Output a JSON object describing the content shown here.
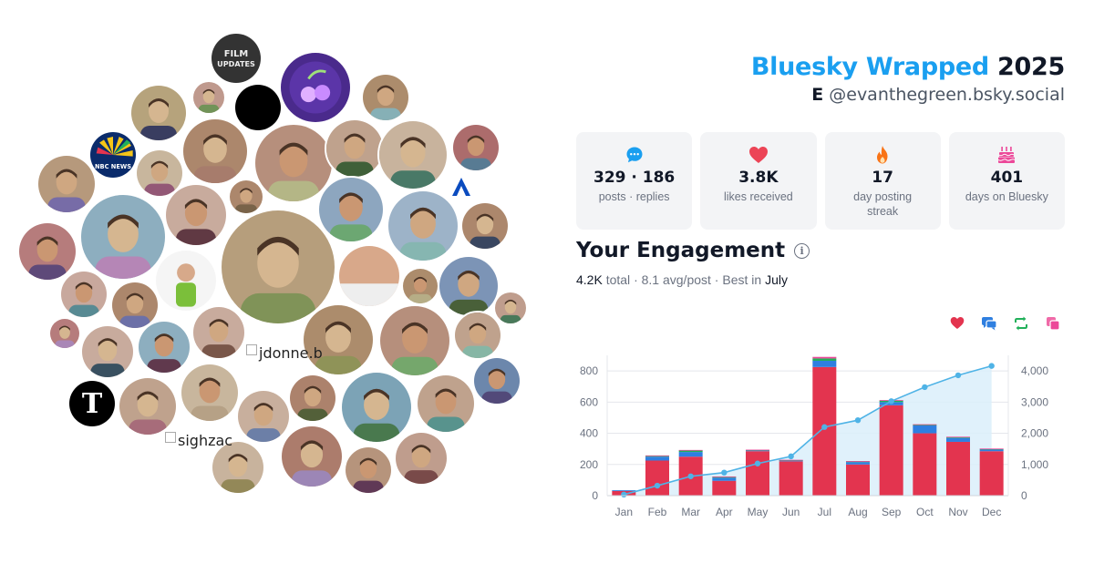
{
  "header": {
    "brand": "Bluesky Wrapped",
    "year": "2025",
    "initial": "E",
    "handle": "@evanthegreen.bsky.social"
  },
  "stats": [
    {
      "icon": "chat-bubble-icon",
      "value": "329 · 186",
      "label": "posts · replies",
      "color": "#1a9ff0"
    },
    {
      "icon": "heart-icon",
      "value": "3.8K",
      "label": "likes received",
      "color": "#ec4456"
    },
    {
      "icon": "flame-icon",
      "value": "17",
      "label": "day posting streak",
      "color": "#f97316"
    },
    {
      "icon": "cake-icon",
      "value": "401",
      "label": "days on Bluesky",
      "color": "#ec4899"
    }
  ],
  "engagement": {
    "title": "Your Engagement",
    "total": "4.2K",
    "total_word": "total",
    "avg": "8.1 avg/post",
    "best_prefix": "Best in",
    "best_month": "July",
    "sep": "·"
  },
  "avatars": {
    "broken_labels": [
      "jdonne.b",
      "sighzac"
    ]
  },
  "legend": [
    {
      "icon": "heart-icon",
      "color": "#e3344f"
    },
    {
      "icon": "reply-icon",
      "color": "#2f7fe0"
    },
    {
      "icon": "repost-icon",
      "color": "#21b05a"
    },
    {
      "icon": "quote-icon",
      "color": "#ec4899"
    }
  ],
  "chart_data": {
    "type": "bar",
    "stacked": true,
    "categories": [
      "Jan",
      "Feb",
      "Mar",
      "Apr",
      "May",
      "Jun",
      "Jul",
      "Aug",
      "Sep",
      "Oct",
      "Nov",
      "Dec"
    ],
    "series": [
      {
        "values": [
          30,
          225,
          250,
          95,
          285,
          220,
          825,
          200,
          580,
          400,
          345,
          285
        ],
        "color": "#e3344f"
      },
      {
        "values": [
          5,
          25,
          30,
          20,
          5,
          5,
          40,
          15,
          20,
          50,
          25,
          10
        ],
        "color": "#2f7fe0"
      },
      {
        "values": [
          0,
          5,
          10,
          5,
          3,
          3,
          15,
          5,
          10,
          5,
          5,
          5
        ],
        "color": "#21b05a"
      },
      {
        "values": [
          0,
          3,
          3,
          3,
          2,
          2,
          10,
          2,
          3,
          3,
          3,
          2
        ],
        "color": "#ec4899"
      }
    ],
    "cumulative": {
      "values": [
        35,
        320,
        620,
        740,
        1030,
        1260,
        2200,
        2420,
        3030,
        3480,
        3860,
        4160
      ],
      "color": "#4fb3e6"
    },
    "ylim": [
      0,
      900
    ],
    "y_ticks": [
      "0",
      "200",
      "400",
      "600",
      "800"
    ],
    "y2lim": [
      0,
      4500
    ],
    "y2_ticks": [
      "0",
      "1,000",
      "2,000",
      "3,000",
      "4,000"
    ],
    "grid": true
  }
}
